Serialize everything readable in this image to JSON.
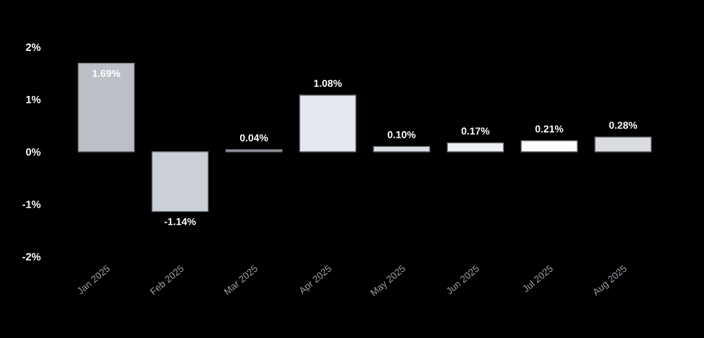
{
  "chart_data": {
    "type": "bar",
    "categories": [
      "Jan 2025",
      "Feb 2025",
      "Mar 2025",
      "Apr 2025",
      "May 2025",
      "Jun 2025",
      "Jul 2025",
      "Aug 2025"
    ],
    "values": [
      1.69,
      -1.14,
      0.04,
      1.08,
      0.1,
      0.17,
      0.21,
      0.28
    ],
    "colors": [
      "#bcc0c6",
      "#cbcfd6",
      "#9ea2a8",
      "#e6e8ef",
      "#dcdee5",
      "#eeeff4",
      "#fdfdfe",
      "#dadce2"
    ],
    "value_labels": [
      "1.69%",
      "-1.14%",
      "0.04%",
      "1.08%",
      "0.10%",
      "0.17%",
      "0.21%",
      "0.28%"
    ],
    "ylim": [
      -2,
      2
    ],
    "yticks": [
      {
        "value": -2,
        "label": "-2%"
      },
      {
        "value": -1,
        "label": "-1%"
      },
      {
        "value": 0,
        "label": "0%"
      },
      {
        "value": 1,
        "label": "1%"
      },
      {
        "value": 2,
        "label": "2%"
      }
    ],
    "grid": false,
    "legend": false
  }
}
